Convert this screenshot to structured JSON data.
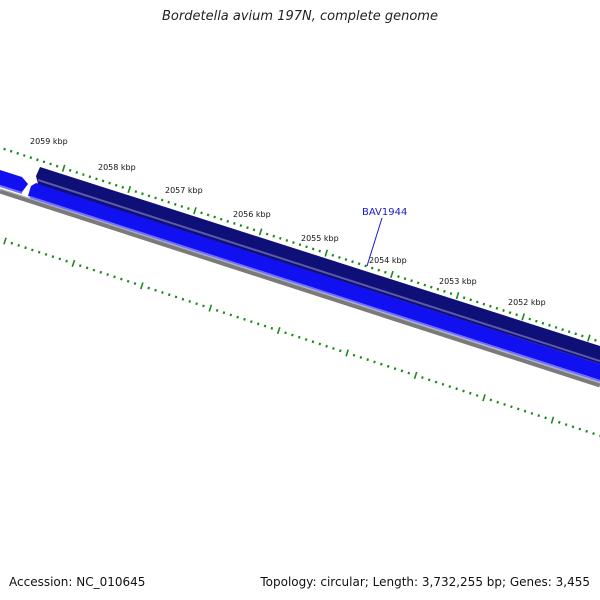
{
  "title": "Bordetella avium 197N, complete genome",
  "footer": {
    "accession": "Accession: NC_010645",
    "summary": "Topology: circular; Length: 3,732,255 bp; Genes: 3,455"
  },
  "colors": {
    "forward_strand": "#0f0f78",
    "reverse_strand": "#1010f0",
    "backbone": "#7a7a7a",
    "ticks": "#1a8a1a",
    "gene_label": "#1a1ac8"
  },
  "ruler": {
    "labels": [
      "2059 kbp",
      "2058 kbp",
      "2057 kbp",
      "2056 kbp",
      "2055 kbp",
      "2054 kbp",
      "2053 kbp",
      "2052 kbp"
    ]
  },
  "features": [
    {
      "name": "BAV1944",
      "strand": "forward"
    }
  ]
}
